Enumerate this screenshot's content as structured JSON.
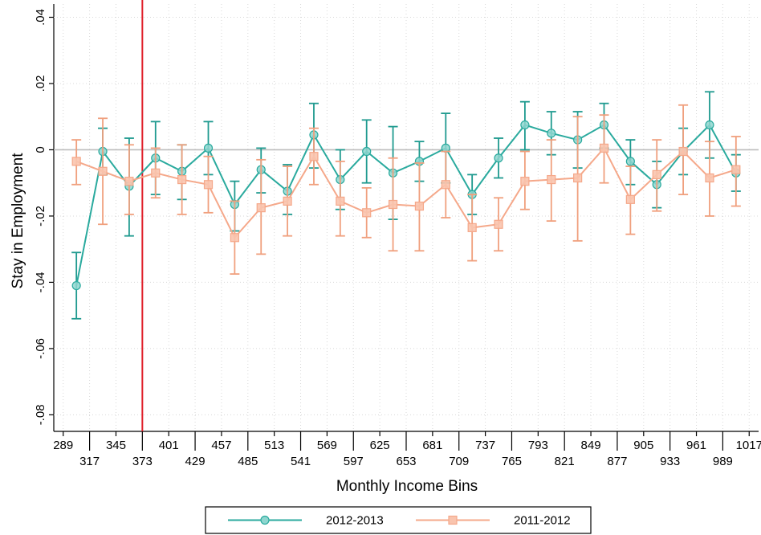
{
  "chart_data": {
    "type": "line",
    "xlabel": "Monthly Income Bins",
    "ylabel": "Stay in Employment",
    "y_tick_labels": [
      "-.08",
      "-.06",
      "-.04",
      "-.02",
      "0",
      ".02",
      ".04"
    ],
    "y_ticks": [
      -0.08,
      -0.06,
      -0.04,
      -0.02,
      0,
      0.02,
      0.04
    ],
    "x_tick_labels": [
      "289",
      "317",
      "345",
      "373",
      "401",
      "429",
      "457",
      "485",
      "513",
      "541",
      "569",
      "597",
      "625",
      "653",
      "681",
      "709",
      "737",
      "765",
      "793",
      "821",
      "849",
      "877",
      "905",
      "933",
      "961",
      "989",
      "1017"
    ],
    "x_ticks": [
      289,
      317,
      345,
      373,
      401,
      429,
      457,
      485,
      513,
      541,
      569,
      597,
      625,
      653,
      681,
      709,
      737,
      765,
      793,
      821,
      849,
      877,
      905,
      933,
      961,
      989,
      1017
    ],
    "xlim": [
      279,
      1027
    ],
    "ylim": [
      -0.085,
      0.044
    ],
    "reference_hline": 0,
    "reference_vline": 373,
    "grid": true,
    "legend_position": "bottom",
    "x": [
      303,
      331,
      359,
      387,
      415,
      443,
      471,
      499,
      527,
      555,
      583,
      611,
      639,
      667,
      695,
      723,
      751,
      779,
      807,
      835,
      863,
      891,
      919,
      947,
      975,
      1003
    ],
    "series": [
      {
        "name": "2012-2013",
        "color": "#2aaa9e",
        "marker": "circle",
        "values": [
          -0.041,
          -0.0005,
          -0.011,
          -0.0025,
          -0.0065,
          0.0005,
          -0.0165,
          -0.006,
          -0.0125,
          0.0045,
          -0.009,
          -0.0005,
          -0.007,
          -0.0035,
          0.0005,
          -0.0135,
          -0.0025,
          0.0075,
          0.005,
          0.003,
          0.0075,
          -0.0035,
          -0.0105,
          -0.0005,
          0.0075,
          -0.007
        ],
        "lower": [
          -0.051,
          -0.0075,
          -0.026,
          -0.0135,
          -0.015,
          -0.0075,
          -0.0245,
          -0.013,
          -0.0195,
          -0.0055,
          -0.018,
          -0.01,
          -0.021,
          -0.0095,
          -0.01,
          -0.0195,
          -0.0085,
          0.0,
          -0.0015,
          -0.0055,
          0.0005,
          -0.0105,
          -0.0175,
          -0.0075,
          -0.0025,
          -0.0125
        ],
        "upper": [
          -0.031,
          0.0065,
          0.0035,
          0.0085,
          0.0015,
          0.0085,
          -0.0095,
          0.0005,
          -0.0045,
          0.014,
          0.0,
          0.009,
          0.007,
          0.0025,
          0.011,
          -0.0075,
          0.0035,
          0.0145,
          0.0115,
          0.0115,
          0.014,
          0.003,
          -0.0035,
          0.0065,
          0.0175,
          -0.0015
        ]
      },
      {
        "name": "2011-2012",
        "color": "#f5a88a",
        "marker": "square",
        "values": [
          -0.0035,
          -0.0065,
          -0.0095,
          -0.007,
          -0.009,
          -0.0105,
          -0.0265,
          -0.0175,
          -0.0155,
          -0.002,
          -0.0155,
          -0.019,
          -0.0165,
          -0.017,
          -0.0105,
          -0.0235,
          -0.0225,
          -0.0095,
          -0.009,
          -0.0085,
          0.0005,
          -0.015,
          -0.0075,
          -0.0005,
          -0.0085,
          -0.006
        ],
        "lower": [
          -0.0105,
          -0.0225,
          -0.0195,
          -0.0145,
          -0.0195,
          -0.019,
          -0.0375,
          -0.0315,
          -0.026,
          -0.0105,
          -0.026,
          -0.0265,
          -0.0305,
          -0.0305,
          -0.0205,
          -0.0335,
          -0.0305,
          -0.018,
          -0.0215,
          -0.0275,
          -0.01,
          -0.0255,
          -0.0185,
          -0.0135,
          -0.02,
          -0.017
        ],
        "upper": [
          0.003,
          0.0095,
          0.0015,
          0.0005,
          0.0015,
          -0.002,
          -0.0155,
          -0.003,
          -0.005,
          0.0065,
          -0.0035,
          -0.0115,
          -0.0025,
          -0.004,
          -0.0005,
          -0.0135,
          -0.0145,
          -0.0005,
          0.003,
          0.01,
          0.0105,
          -0.005,
          0.003,
          0.0135,
          0.0025,
          0.004
        ]
      }
    ]
  }
}
